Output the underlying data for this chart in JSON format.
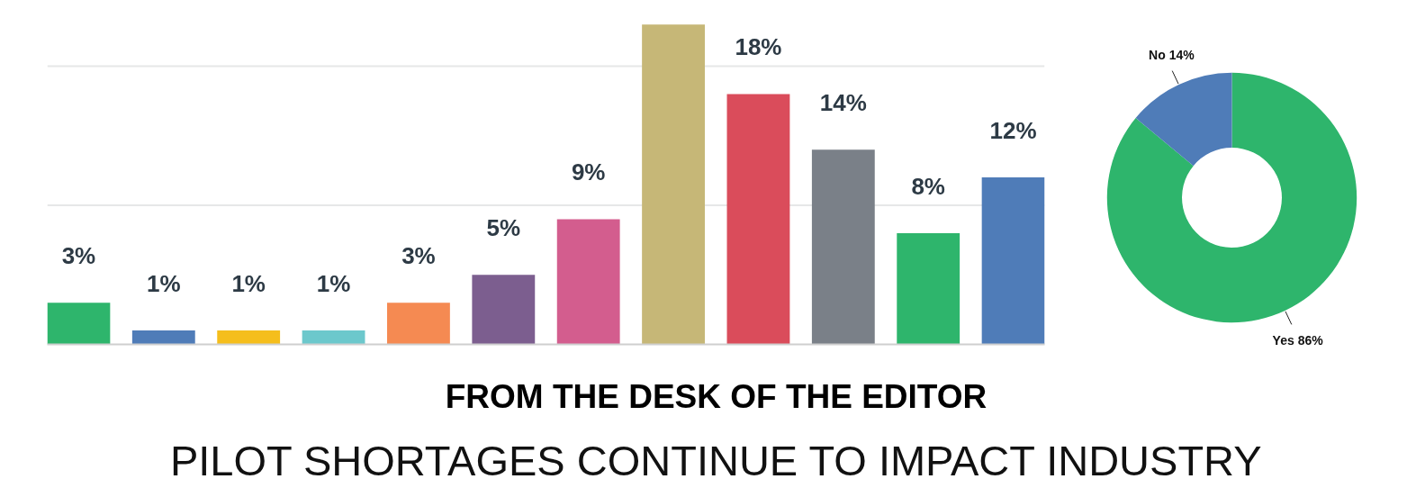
{
  "chart_data": [
    {
      "type": "bar",
      "title": "FROM THE DESK OF THE EDITOR",
      "subtitle": "PILOT SHORTAGES CONTINUE TO IMPACT INDUSTRY",
      "categories": [
        null,
        null,
        null,
        null,
        null,
        null,
        null,
        null,
        null,
        null,
        null,
        null
      ],
      "values": [
        3,
        1,
        1,
        1,
        3,
        5,
        9,
        23,
        18,
        14,
        8,
        12
      ],
      "value_labels": [
        "3%",
        "1%",
        "1%",
        "1%",
        "3%",
        "5%",
        "9%",
        null,
        "18%",
        "14%",
        "8%",
        "12%"
      ],
      "colors": [
        "#2eb56c",
        "#4f7cb8",
        "#f5be1c",
        "#6cc8cc",
        "#f58a52",
        "#7c5e8f",
        "#d35d8e",
        "#c6b777",
        "#da4c5b",
        "#7a8088",
        "#2eb56c",
        "#4f7cb8"
      ],
      "ref_lines": [
        {
          "axis": "y",
          "value": 10,
          "color": "#e6e7e8"
        },
        {
          "axis": "y",
          "value": 20,
          "color": "#e6e7e8"
        }
      ],
      "tick_labels": false
    },
    {
      "type": "donut",
      "categories": [
        "Yes",
        "No"
      ],
      "values": [
        86,
        14
      ],
      "value_labels": [
        "86%",
        "14%"
      ],
      "colors": [
        "#2eb56c",
        "#4f7cb8"
      ]
    }
  ]
}
